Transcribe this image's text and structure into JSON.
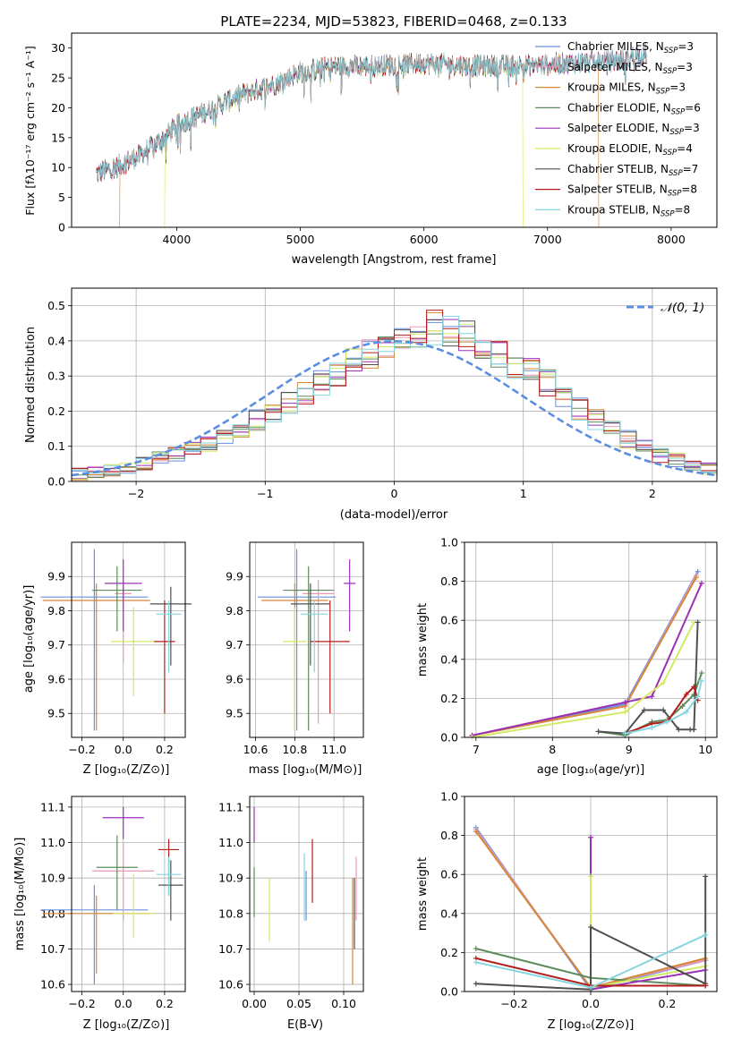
{
  "chart_data": [
    {
      "id": "spectrum",
      "type": "line",
      "title": "PLATE=2234, MJD=53823, FIBERID=0468, z=0.133",
      "xlabel": "wavelength [Angstrom, rest frame]",
      "ylabel": "Flux [fλ10⁻¹⁷ erg cm⁻² s⁻¹ A⁻¹]",
      "xlim": [
        3150,
        8370
      ],
      "ylim": [
        0,
        32.5
      ],
      "xticks": [
        4000,
        5000,
        6000,
        7000,
        8000
      ],
      "yticks": [
        0,
        5,
        10,
        15,
        20,
        25,
        30
      ],
      "grid": false,
      "legend_position": "top-right",
      "legend": [
        {
          "name": "Chabrier MILES, N",
          "sub": "SSP",
          "tail": "=3",
          "color": "#6a8fe0"
        },
        {
          "name": "Salpeter MILES, N",
          "sub": "SSP",
          "tail": "=3",
          "color": "#e79ab8"
        },
        {
          "name": "Kroupa MILES, N",
          "sub": "SSP",
          "tail": "=3",
          "color": "#d6883a"
        },
        {
          "name": "Chabrier ELODIE, N",
          "sub": "SSP",
          "tail": "=6",
          "color": "#5c8c5c"
        },
        {
          "name": "Salpeter ELODIE, N",
          "sub": "SSP",
          "tail": "=3",
          "color": "#9b30b5"
        },
        {
          "name": "Kroupa ELODIE, N",
          "sub": "SSP",
          "tail": "=4",
          "color": "#d4ea63"
        },
        {
          "name": "Chabrier STELIB, N",
          "sub": "SSP",
          "tail": "=7",
          "color": "#505050"
        },
        {
          "name": "Salpeter STELIB, N",
          "sub": "SSP",
          "tail": "=8",
          "color": "#b51c1c"
        },
        {
          "name": "Kroupa STELIB, N",
          "sub": "SSP",
          "tail": "=8",
          "color": "#86d6e0"
        }
      ],
      "data_trend": {
        "x": [
          3350,
          3500,
          3700,
          3900,
          4000,
          4200,
          4500,
          4800,
          5000,
          5300,
          5600,
          6000,
          6400,
          6800,
          7200,
          7600,
          7800
        ],
        "y": [
          9,
          10,
          12,
          15,
          17,
          19,
          22,
          24,
          26,
          27,
          27,
          27.5,
          27,
          27,
          27.5,
          28,
          29
        ]
      },
      "model_cutoffs": [
        {
          "series": "Kroupa MILES",
          "x_start": 3540,
          "x_end": 7410
        },
        {
          "series": "Kroupa ELODIE",
          "x_start": 3905,
          "x_end": 6800
        }
      ]
    },
    {
      "id": "residuals",
      "type": "histogram",
      "xlabel": "(data-model)/error",
      "ylabel": "Normed distribution",
      "xlim": [
        -2.5,
        2.5
      ],
      "ylim": [
        0,
        0.55
      ],
      "xticks": [
        -2,
        -1,
        0,
        1,
        2
      ],
      "yticks": [
        0.0,
        0.1,
        0.2,
        0.3,
        0.4,
        0.5
      ],
      "grid": true,
      "legend_position": "top-right",
      "legend": [
        {
          "name": "𝒩(0, 1)",
          "color": "#5b8ee0",
          "style": "dashed"
        }
      ],
      "bins": {
        "start": -2.5,
        "width": 0.125,
        "count": 40
      },
      "base_heights": [
        0.02,
        0.026,
        0.03,
        0.04,
        0.05,
        0.064,
        0.08,
        0.096,
        0.11,
        0.128,
        0.15,
        0.175,
        0.2,
        0.225,
        0.255,
        0.28,
        0.31,
        0.335,
        0.36,
        0.385,
        0.41,
        0.43,
        0.44,
        0.43,
        0.41,
        0.385,
        0.36,
        0.335,
        0.31,
        0.28,
        0.24,
        0.205,
        0.175,
        0.15,
        0.12,
        0.095,
        0.075,
        0.06,
        0.045,
        0.035
      ],
      "series_colors": [
        "#6a8fe0",
        "#e79ab8",
        "#d6883a",
        "#5c8c5c",
        "#9b30b5",
        "#d4ea63",
        "#505050",
        "#b51c1c",
        "#86d6e0"
      ]
    },
    {
      "id": "z_vs_age",
      "type": "errorbar",
      "xlabel": "Z [log₁₀(Z/Z⊙)]",
      "ylabel": "age  [log₁₀(age/yr)]",
      "xlim": [
        -0.25,
        0.3
      ],
      "ylim": [
        9.43,
        10.0
      ],
      "xticks": [
        -0.2,
        0.0,
        0.2
      ],
      "yticks": [
        9.5,
        9.6,
        9.7,
        9.8,
        9.9
      ],
      "points": [
        {
          "x": -0.14,
          "xerr": 0.26,
          "y": 9.84,
          "yerr_lo": 0.39,
          "yerr_hi": 0.14,
          "color": "#6a8fe0"
        },
        {
          "x": 0.0,
          "xerr": 0.04,
          "y": 9.85,
          "yerr_lo": 0.2,
          "yerr_hi": 0.04,
          "color": "#e79ab8"
        },
        {
          "x": -0.13,
          "xerr": 0.26,
          "y": 9.83,
          "yerr_lo": 0.38,
          "yerr_hi": 0.05,
          "color": "#d6883a"
        },
        {
          "x": -0.03,
          "xerr": 0.12,
          "y": 9.86,
          "yerr_lo": 0.12,
          "yerr_hi": 0.07,
          "color": "#5c8c5c"
        },
        {
          "x": 0.0,
          "xerr": 0.09,
          "y": 9.88,
          "yerr_lo": 0.14,
          "yerr_hi": 0.07,
          "color": "#9b30b5"
        },
        {
          "x": 0.05,
          "xerr": 0.11,
          "y": 9.71,
          "yerr_lo": 0.16,
          "yerr_hi": 0.1,
          "color": "#d4ea63"
        },
        {
          "x": 0.23,
          "xerr": 0.1,
          "y": 9.82,
          "yerr_lo": 0.18,
          "yerr_hi": 0.05,
          "color": "#505050"
        },
        {
          "x": 0.2,
          "xerr": 0.05,
          "y": 9.71,
          "yerr_lo": 0.21,
          "yerr_hi": 0.12,
          "color": "#b51c1c"
        },
        {
          "x": 0.22,
          "xerr": 0.06,
          "y": 9.79,
          "yerr_lo": 0.17,
          "yerr_hi": 0.04,
          "color": "#86d6e0"
        }
      ]
    },
    {
      "id": "mass_vs_age",
      "type": "errorbar",
      "xlabel": "mass [log₁₀(M/M⊙)]",
      "ylabel": "",
      "xlim": [
        10.57,
        11.15
      ],
      "ylim": [
        9.43,
        10.0
      ],
      "xticks": [
        10.6,
        10.8,
        11.0
      ],
      "yticks": [
        9.5,
        9.6,
        9.7,
        9.8,
        9.9
      ],
      "points": [
        {
          "x": 10.81,
          "xerr": 0.2,
          "y": 9.84,
          "yerr_lo": 0.39,
          "yerr_hi": 0.14,
          "color": "#6a8fe0"
        },
        {
          "x": 10.92,
          "xerr": 0.08,
          "y": 9.85,
          "yerr_lo": 0.38,
          "yerr_hi": 0.04,
          "color": "#e79ab8"
        },
        {
          "x": 10.8,
          "xerr": 0.17,
          "y": 9.83,
          "yerr_lo": 0.38,
          "yerr_hi": 0.05,
          "color": "#d6883a"
        },
        {
          "x": 10.87,
          "xerr": 0.13,
          "y": 9.86,
          "yerr_lo": 0.41,
          "yerr_hi": 0.07,
          "color": "#5c8c5c"
        },
        {
          "x": 11.08,
          "xerr": 0.03,
          "y": 9.88,
          "yerr_lo": 0.14,
          "yerr_hi": 0.07,
          "color": "#9b30b5"
        },
        {
          "x": 10.8,
          "xerr": 0.06,
          "y": 9.71,
          "yerr_lo": 0.26,
          "yerr_hi": 0.1,
          "color": "#d4ea63"
        },
        {
          "x": 10.88,
          "xerr": 0.1,
          "y": 9.82,
          "yerr_lo": 0.18,
          "yerr_hi": 0.06,
          "color": "#505050"
        },
        {
          "x": 10.98,
          "xerr": 0.1,
          "y": 9.71,
          "yerr_lo": 0.21,
          "yerr_hi": 0.12,
          "color": "#b51c1c"
        },
        {
          "x": 10.9,
          "xerr": 0.07,
          "y": 9.79,
          "yerr_lo": 0.17,
          "yerr_hi": 0.04,
          "color": "#86d6e0"
        }
      ]
    },
    {
      "id": "age_weights",
      "type": "line",
      "xlabel": "age  [log₁₀(age/yr)]",
      "ylabel": "mass weight",
      "xlim": [
        6.85,
        10.15
      ],
      "ylim": [
        0,
        1.0
      ],
      "xticks": [
        7,
        8,
        9,
        10
      ],
      "yticks": [
        0.0,
        0.2,
        0.4,
        0.6,
        0.8,
        1.0
      ],
      "grid": true,
      "series": [
        {
          "color": "#6a8fe0",
          "x": [
            6.95,
            8.95,
            9.9
          ],
          "y": [
            0.01,
            0.17,
            0.85
          ]
        },
        {
          "color": "#e79ab8",
          "x": [
            6.95,
            8.95,
            9.88
          ],
          "y": [
            0.01,
            0.16,
            0.83
          ]
        },
        {
          "color": "#d6883a",
          "x": [
            6.95,
            8.95,
            9.88
          ],
          "y": [
            0.01,
            0.16,
            0.82
          ]
        },
        {
          "color": "#5c8c5c",
          "x": [
            8.6,
            8.95,
            9.3,
            9.5,
            9.7,
            9.85,
            9.95
          ],
          "y": [
            0.03,
            0.01,
            0.08,
            0.09,
            0.16,
            0.22,
            0.33
          ]
        },
        {
          "color": "#9b30b5",
          "x": [
            6.95,
            8.95,
            9.3,
            9.95
          ],
          "y": [
            0.01,
            0.18,
            0.21,
            0.79
          ]
        },
        {
          "color": "#d4ea63",
          "x": [
            6.95,
            8.95,
            9.45,
            9.85
          ],
          "y": [
            0.0,
            0.13,
            0.28,
            0.59
          ]
        },
        {
          "color": "#505050",
          "x": [
            8.6,
            8.95,
            9.2,
            9.45,
            9.65,
            9.8,
            9.85,
            9.9
          ],
          "y": [
            0.03,
            0.02,
            0.14,
            0.14,
            0.04,
            0.04,
            0.04,
            0.59
          ]
        },
        {
          "color": "#b51c1c",
          "x": [
            8.95,
            9.3,
            9.5,
            9.75,
            9.85,
            9.9
          ],
          "y": [
            0.02,
            0.07,
            0.08,
            0.22,
            0.26,
            0.19
          ]
        },
        {
          "color": "#86d6e0",
          "x": [
            8.95,
            9.3,
            9.5,
            9.75,
            9.9,
            9.95
          ],
          "y": [
            0.02,
            0.05,
            0.08,
            0.13,
            0.21,
            0.29
          ]
        }
      ]
    },
    {
      "id": "z_vs_mass",
      "type": "errorbar",
      "xlabel": "Z [log₁₀(Z/Z⊙)]",
      "ylabel": "mass [log₁₀(M/M⊙)]",
      "xlim": [
        -0.25,
        0.3
      ],
      "ylim": [
        10.58,
        11.13
      ],
      "xticks": [
        -0.2,
        0.0,
        0.2
      ],
      "yticks": [
        10.6,
        10.7,
        10.8,
        10.9,
        11.0,
        11.1
      ],
      "points": [
        {
          "x": -0.14,
          "xerr": 0.26,
          "y": 10.81,
          "yerr_lo": 0.21,
          "yerr_hi": 0.07,
          "color": "#6a8fe0"
        },
        {
          "x": 0.0,
          "xerr": 0.15,
          "y": 10.92,
          "yerr_lo": 0.14,
          "yerr_hi": 0.08,
          "color": "#e79ab8"
        },
        {
          "x": -0.13,
          "xerr": 0.26,
          "y": 10.8,
          "yerr_lo": 0.17,
          "yerr_hi": 0.05,
          "color": "#d6883a"
        },
        {
          "x": -0.03,
          "xerr": 0.1,
          "y": 10.93,
          "yerr_lo": 0.12,
          "yerr_hi": 0.09,
          "color": "#5c8c5c"
        },
        {
          "x": 0.0,
          "xerr": 0.1,
          "y": 11.07,
          "yerr_lo": 0.06,
          "yerr_hi": 0.03,
          "color": "#9b30b5"
        },
        {
          "x": 0.05,
          "xerr": 0.1,
          "y": 10.8,
          "yerr_lo": 0.07,
          "yerr_hi": 0.11,
          "color": "#d4ea63"
        },
        {
          "x": 0.23,
          "xerr": 0.06,
          "y": 10.88,
          "yerr_lo": 0.1,
          "yerr_hi": 0.07,
          "color": "#505050"
        },
        {
          "x": 0.22,
          "xerr": 0.05,
          "y": 10.98,
          "yerr_lo": 0.13,
          "yerr_hi": 0.03,
          "color": "#b51c1c"
        },
        {
          "x": 0.22,
          "xerr": 0.06,
          "y": 10.91,
          "yerr_lo": 0.06,
          "yerr_hi": 0.05,
          "color": "#86d6e0"
        }
      ]
    },
    {
      "id": "ebv_vs_mass",
      "type": "errorbar",
      "xlabel": "E(B-V)",
      "ylabel": "",
      "xlim": [
        -0.005,
        0.122
      ],
      "ylim": [
        10.58,
        11.13
      ],
      "xticks": [
        0.0,
        0.05,
        0.1
      ],
      "yticks": [
        10.6,
        10.7,
        10.8,
        10.9,
        11.0,
        11.1
      ],
      "points": [
        {
          "x": 0.0,
          "y": 11.05,
          "yerr_lo": 0.05,
          "yerr_hi": 0.05,
          "color": "#9b30b5"
        },
        {
          "x": 0.0,
          "y": 10.86,
          "yerr_lo": 0.07,
          "yerr_hi": 0.07,
          "color": "#5c8c5c"
        },
        {
          "x": 0.017,
          "y": 10.81,
          "yerr_lo": 0.09,
          "yerr_hi": 0.09,
          "color": "#d4ea63"
        },
        {
          "x": 0.056,
          "y": 10.88,
          "yerr_lo": 0.1,
          "yerr_hi": 0.09,
          "color": "#86d6e0"
        },
        {
          "x": 0.058,
          "y": 10.85,
          "yerr_lo": 0.07,
          "yerr_hi": 0.07,
          "color": "#6a8fe0"
        },
        {
          "x": 0.065,
          "y": 10.92,
          "yerr_lo": 0.09,
          "yerr_hi": 0.09,
          "color": "#b51c1c"
        },
        {
          "x": 0.11,
          "y": 10.76,
          "yerr_lo": 0.16,
          "yerr_hi": 0.14,
          "color": "#d6883a"
        },
        {
          "x": 0.112,
          "y": 10.8,
          "yerr_lo": 0.1,
          "yerr_hi": 0.1,
          "color": "#505050"
        },
        {
          "x": 0.114,
          "y": 10.87,
          "yerr_lo": 0.09,
          "yerr_hi": 0.09,
          "color": "#e79ab8"
        }
      ]
    },
    {
      "id": "z_weights",
      "type": "line",
      "xlabel": "Z [log₁₀(Z/Z⊙)]",
      "ylabel": "mass weight",
      "xlim": [
        -0.33,
        0.33
      ],
      "ylim": [
        0,
        1.0
      ],
      "xticks": [
        -0.2,
        0.0,
        0.2
      ],
      "yticks": [
        0.0,
        0.2,
        0.4,
        0.6,
        0.8,
        1.0
      ],
      "grid": true,
      "series": [
        {
          "color": "#6a8fe0",
          "x": [
            -0.3,
            0.0,
            0.3
          ],
          "y": [
            0.84,
            0.01,
            0.16
          ]
        },
        {
          "color": "#e79ab8",
          "x": [
            -0.3,
            0.0,
            0.3
          ],
          "y": [
            0.83,
            0.02,
            0.16
          ]
        },
        {
          "color": "#d6883a",
          "x": [
            -0.3,
            0.0,
            0.3
          ],
          "y": [
            0.82,
            0.02,
            0.17
          ]
        },
        {
          "color": "#5c8c5c",
          "x": [
            -0.3,
            0.0,
            0.3
          ],
          "y": [
            0.22,
            0.07,
            0.03
          ]
        },
        {
          "color": "#9b30b5",
          "x": [
            0.0,
            0.0,
            0.3
          ],
          "y": [
            0.79,
            0.01,
            0.11
          ]
        },
        {
          "color": "#d4ea63",
          "x": [
            0.0,
            0.0,
            0.3
          ],
          "y": [
            0.59,
            0.02,
            0.13
          ]
        },
        {
          "color": "#505050",
          "x": [
            -0.3,
            0.0,
            0.0,
            0.3,
            0.3
          ],
          "y": [
            0.04,
            0.01,
            0.33,
            0.04,
            0.59
          ]
        },
        {
          "color": "#b51c1c",
          "x": [
            -0.3,
            0.0,
            0.3
          ],
          "y": [
            0.17,
            0.03,
            0.03
          ]
        },
        {
          "color": "#86d6e0",
          "x": [
            -0.3,
            0.0,
            0.3
          ],
          "y": [
            0.15,
            0.02,
            0.29
          ]
        }
      ]
    }
  ]
}
